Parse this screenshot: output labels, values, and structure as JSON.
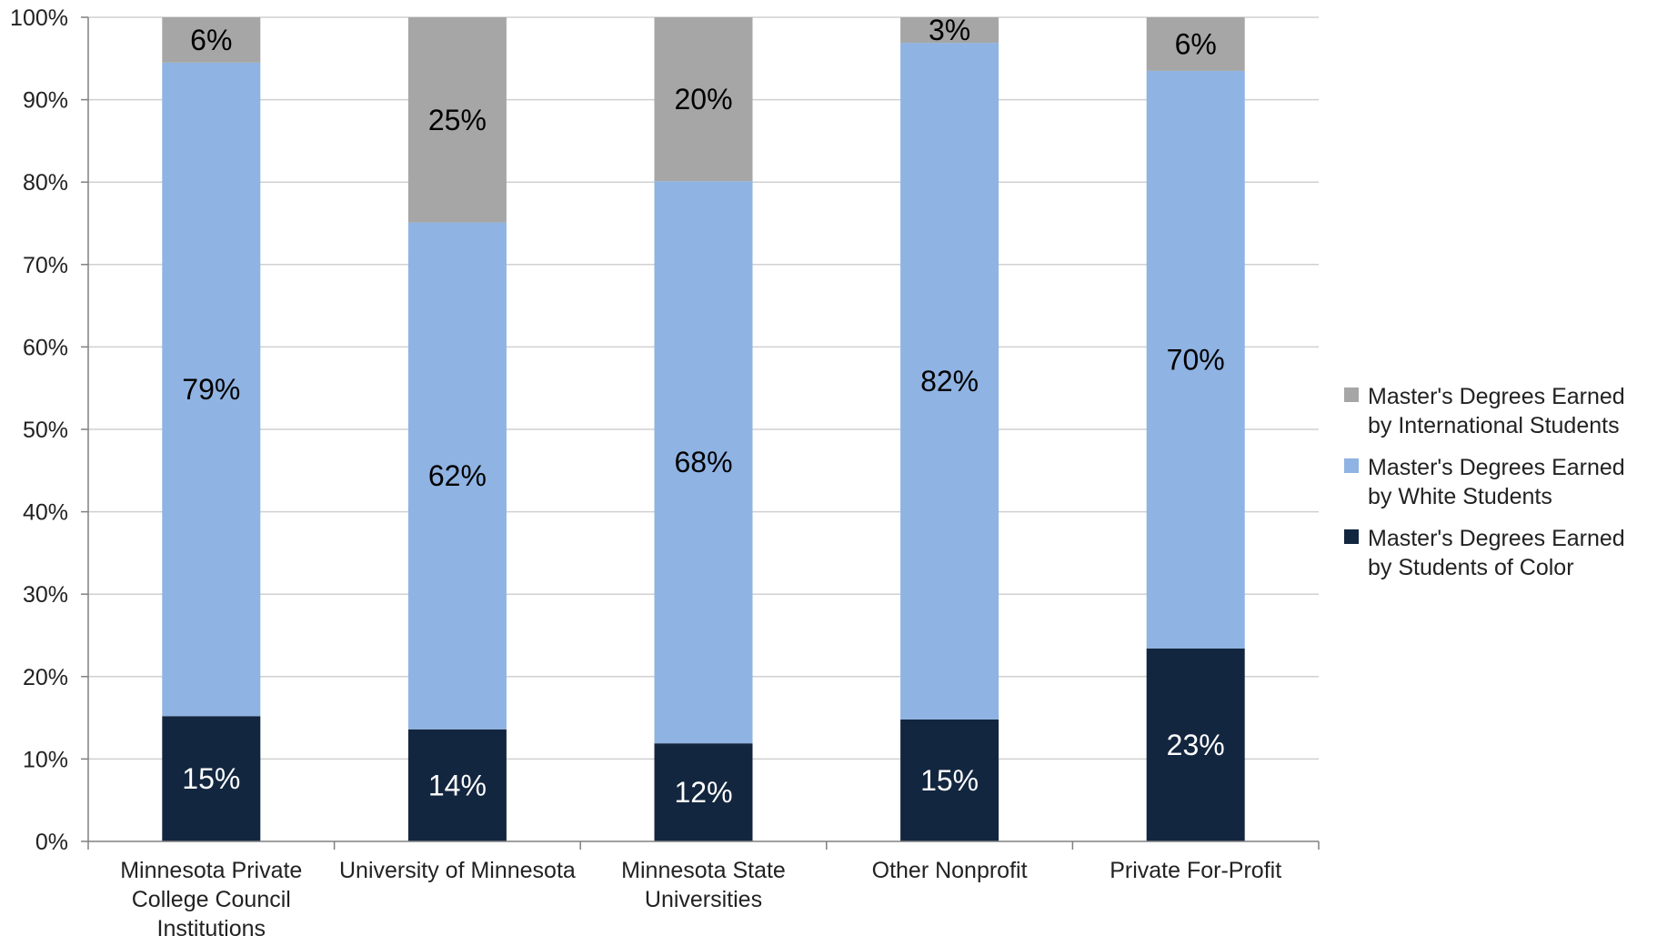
{
  "chart_data": {
    "type": "bar",
    "stacked": true,
    "categories": [
      "Minnesota Private College Council Institutions",
      "University of Minnesota",
      "Minnesota State Universities",
      "Other Nonprofit",
      "Private For-Profit"
    ],
    "category_lines": [
      [
        "Minnesota Private",
        "College Council",
        "Institutions"
      ],
      [
        "University of Minnesota"
      ],
      [
        "Minnesota State",
        "Universities"
      ],
      [
        "Other Nonprofit"
      ],
      [
        "Private For-Profit"
      ]
    ],
    "series": [
      {
        "name": "Master's Degrees Earned by Students of Color",
        "color": "#13263F",
        "label_color": "#ffffff",
        "values": [
          15.2,
          13.6,
          11.9,
          14.8,
          23.4
        ],
        "labels": [
          "15%",
          "14%",
          "12%",
          "15%",
          "23%"
        ]
      },
      {
        "name": "Master's Degrees Earned by White Students",
        "color": "#8FB3E2",
        "label_color": "#000000",
        "values": [
          79.3,
          61.5,
          68.2,
          82.1,
          70.1
        ],
        "labels": [
          "79%",
          "62%",
          "68%",
          "82%",
          "70%"
        ]
      },
      {
        "name": "Master's Degrees Earned by International Students",
        "color": "#A6A6A6",
        "label_color": "#000000",
        "values": [
          5.5,
          24.9,
          19.9,
          3.1,
          6.5
        ],
        "labels": [
          "6%",
          "25%",
          "20%",
          "3%",
          "6%"
        ]
      }
    ],
    "yticks": [
      "0%",
      "10%",
      "20%",
      "30%",
      "40%",
      "50%",
      "60%",
      "70%",
      "80%",
      "90%",
      "100%"
    ],
    "ylim": [
      0,
      100
    ],
    "grid": true,
    "legend_position": "right",
    "xlabel": "",
    "ylabel": ""
  },
  "legend": {
    "items": [
      {
        "label": "Master's Degrees Earned by International Students",
        "color": "#A6A6A6"
      },
      {
        "label": "Master's Degrees Earned by White Students",
        "color": "#8FB3E2"
      },
      {
        "label": "Master's Degrees Earned by Students of Color",
        "color": "#13263F"
      }
    ]
  }
}
